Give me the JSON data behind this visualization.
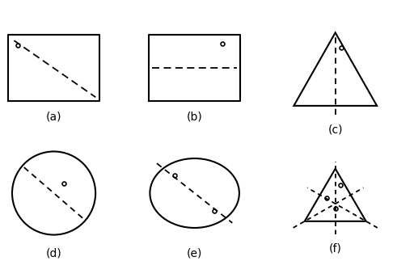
{
  "background": "#ffffff",
  "line_color": "#000000",
  "dashed_color": "#000000",
  "label_color": "#000000",
  "labels": [
    "(a)",
    "(b)",
    "(c)",
    "(d)",
    "(e)",
    "(f)"
  ],
  "label_fontsize": 10
}
